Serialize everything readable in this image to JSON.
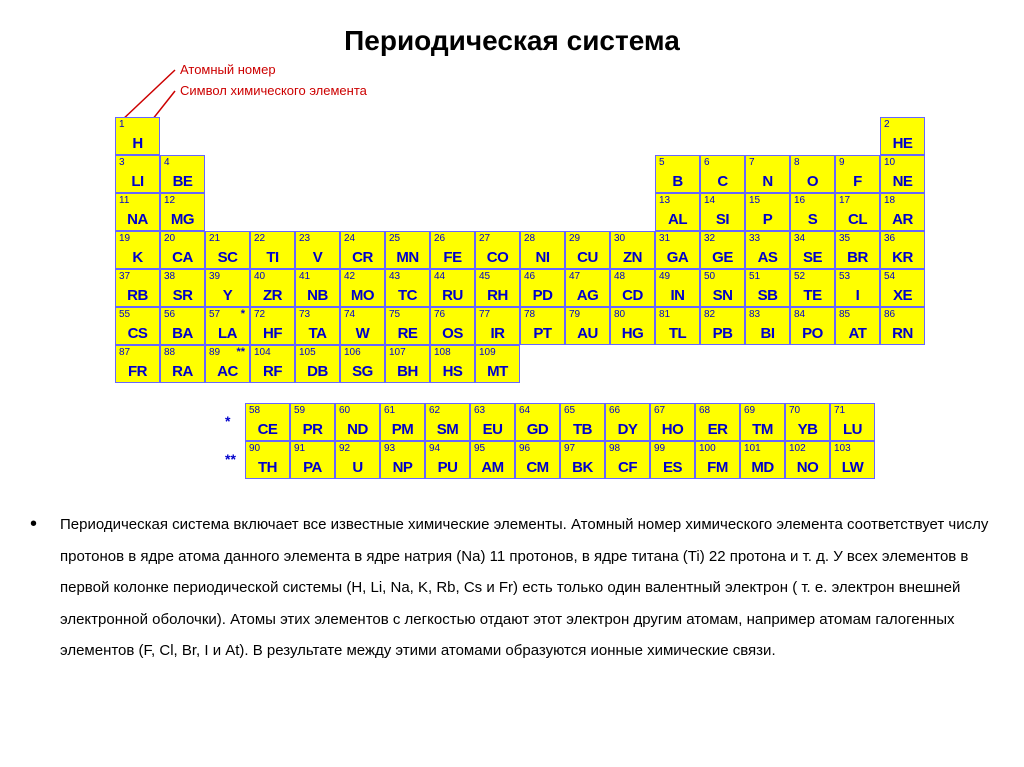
{
  "title": "Периодическая система",
  "legend": {
    "atomic_number": "Атомный номер",
    "symbol": "Символ химического элемента"
  },
  "colors": {
    "cell_bg": "#ffff00",
    "cell_border": "#6666ff",
    "text": "#0000cc",
    "arrow": "#cc0000"
  },
  "main_rows": [
    [
      {
        "n": 1,
        "s": "H"
      },
      null,
      null,
      null,
      null,
      null,
      null,
      null,
      null,
      null,
      null,
      null,
      null,
      null,
      null,
      null,
      null,
      {
        "n": 2,
        "s": "He"
      }
    ],
    [
      {
        "n": 3,
        "s": "Li"
      },
      {
        "n": 4,
        "s": "Be"
      },
      null,
      null,
      null,
      null,
      null,
      null,
      null,
      null,
      null,
      null,
      {
        "n": 5,
        "s": "B"
      },
      {
        "n": 6,
        "s": "C"
      },
      {
        "n": 7,
        "s": "N"
      },
      {
        "n": 8,
        "s": "O"
      },
      {
        "n": 9,
        "s": "F"
      },
      {
        "n": 10,
        "s": "Ne"
      }
    ],
    [
      {
        "n": 11,
        "s": "Na"
      },
      {
        "n": 12,
        "s": "Mg"
      },
      null,
      null,
      null,
      null,
      null,
      null,
      null,
      null,
      null,
      null,
      {
        "n": 13,
        "s": "Al"
      },
      {
        "n": 14,
        "s": "Si"
      },
      {
        "n": 15,
        "s": "P"
      },
      {
        "n": 16,
        "s": "S"
      },
      {
        "n": 17,
        "s": "Cl"
      },
      {
        "n": 18,
        "s": "Ar"
      }
    ],
    [
      {
        "n": 19,
        "s": "K"
      },
      {
        "n": 20,
        "s": "Ca"
      },
      {
        "n": 21,
        "s": "Sc"
      },
      {
        "n": 22,
        "s": "Ti"
      },
      {
        "n": 23,
        "s": "V"
      },
      {
        "n": 24,
        "s": "Cr"
      },
      {
        "n": 25,
        "s": "Mn"
      },
      {
        "n": 26,
        "s": "Fe"
      },
      {
        "n": 27,
        "s": "Co"
      },
      {
        "n": 28,
        "s": "Ni"
      },
      {
        "n": 29,
        "s": "Cu"
      },
      {
        "n": 30,
        "s": "Zn"
      },
      {
        "n": 31,
        "s": "Ga"
      },
      {
        "n": 32,
        "s": "Ge"
      },
      {
        "n": 33,
        "s": "As"
      },
      {
        "n": 34,
        "s": "Se"
      },
      {
        "n": 35,
        "s": "Br"
      },
      {
        "n": 36,
        "s": "Kr"
      }
    ],
    [
      {
        "n": 37,
        "s": "Rb"
      },
      {
        "n": 38,
        "s": "Sr"
      },
      {
        "n": 39,
        "s": "Y"
      },
      {
        "n": 40,
        "s": "Zr"
      },
      {
        "n": 41,
        "s": "Nb"
      },
      {
        "n": 42,
        "s": "Mo"
      },
      {
        "n": 43,
        "s": "Tc"
      },
      {
        "n": 44,
        "s": "Ru"
      },
      {
        "n": 45,
        "s": "Rh"
      },
      {
        "n": 46,
        "s": "Pd"
      },
      {
        "n": 47,
        "s": "Ag"
      },
      {
        "n": 48,
        "s": "Cd"
      },
      {
        "n": 49,
        "s": "In"
      },
      {
        "n": 50,
        "s": "Sn"
      },
      {
        "n": 51,
        "s": "Sb"
      },
      {
        "n": 52,
        "s": "Te"
      },
      {
        "n": 53,
        "s": "I"
      },
      {
        "n": 54,
        "s": "Xe"
      }
    ],
    [
      {
        "n": 55,
        "s": "Cs"
      },
      {
        "n": 56,
        "s": "Ba"
      },
      {
        "n": 57,
        "s": "La",
        "m": "*"
      },
      {
        "n": 72,
        "s": "Hf"
      },
      {
        "n": 73,
        "s": "Ta"
      },
      {
        "n": 74,
        "s": "W"
      },
      {
        "n": 75,
        "s": "Re"
      },
      {
        "n": 76,
        "s": "Os"
      },
      {
        "n": 77,
        "s": "Ir"
      },
      {
        "n": 78,
        "s": "Pt"
      },
      {
        "n": 79,
        "s": "Au"
      },
      {
        "n": 80,
        "s": "Hg"
      },
      {
        "n": 81,
        "s": "Tl"
      },
      {
        "n": 82,
        "s": "Pb"
      },
      {
        "n": 83,
        "s": "Bi"
      },
      {
        "n": 84,
        "s": "Po"
      },
      {
        "n": 85,
        "s": "At"
      },
      {
        "n": 86,
        "s": "Rn"
      }
    ],
    [
      {
        "n": 87,
        "s": "Fr"
      },
      {
        "n": 88,
        "s": "Ra"
      },
      {
        "n": 89,
        "s": "Ac",
        "m": "**"
      },
      {
        "n": 104,
        "s": "Rf"
      },
      {
        "n": 105,
        "s": "Db"
      },
      {
        "n": 106,
        "s": "Sg"
      },
      {
        "n": 107,
        "s": "Bh"
      },
      {
        "n": 108,
        "s": "Hs"
      },
      {
        "n": 109,
        "s": "Mt"
      },
      null,
      null,
      null,
      null,
      null,
      null,
      null,
      null,
      null
    ]
  ],
  "lanth_rows": [
    {
      "marker": "*",
      "cells": [
        {
          "n": 58,
          "s": "Ce"
        },
        {
          "n": 59,
          "s": "Pr"
        },
        {
          "n": 60,
          "s": "Nd"
        },
        {
          "n": 61,
          "s": "Pm"
        },
        {
          "n": 62,
          "s": "Sm"
        },
        {
          "n": 63,
          "s": "Eu"
        },
        {
          "n": 64,
          "s": "Gd"
        },
        {
          "n": 65,
          "s": "Tb"
        },
        {
          "n": 66,
          "s": "Dy"
        },
        {
          "n": 67,
          "s": "Ho"
        },
        {
          "n": 68,
          "s": "Er"
        },
        {
          "n": 69,
          "s": "Tm"
        },
        {
          "n": 70,
          "s": "Yb"
        },
        {
          "n": 71,
          "s": "Lu"
        }
      ]
    },
    {
      "marker": "**",
      "cells": [
        {
          "n": 90,
          "s": "Th"
        },
        {
          "n": 91,
          "s": "Pa"
        },
        {
          "n": 92,
          "s": "U"
        },
        {
          "n": 93,
          "s": "Np"
        },
        {
          "n": 94,
          "s": "Pu"
        },
        {
          "n": 95,
          "s": "Am"
        },
        {
          "n": 96,
          "s": "Cm"
        },
        {
          "n": 97,
          "s": "Bk"
        },
        {
          "n": 98,
          "s": "Cf"
        },
        {
          "n": 99,
          "s": "Es"
        },
        {
          "n": 100,
          "s": "Fm"
        },
        {
          "n": 101,
          "s": "Md"
        },
        {
          "n": 102,
          "s": "No"
        },
        {
          "n": 103,
          "s": "Lw"
        }
      ]
    }
  ],
  "description": "Периодическая система включает все известные химические элементы. Атомный номер химического элемента соответствует числу протонов в ядре атома данного элемента в ядре натрия (Na) 11 протонов, в ядре титана (Ti)  22 протона и т. д. У всех элементов в первой колонке периодической системы (H, Li, Na,  K, Rb, Cs и Fr) есть только один валентный электрон ( т. е. электрон внешней электронной оболочки). Атомы этих элементов с легкостью отдают этот электрон другим атомам, например атомам галогенных элементов (F, Cl, Br, I и At). В результате между этими атомами образуются ионные химические связи."
}
